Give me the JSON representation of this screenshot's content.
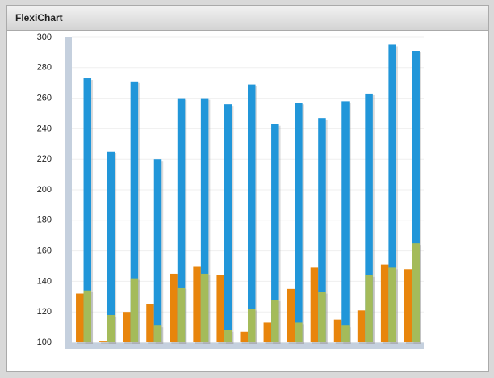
{
  "header": {
    "title": "FlexiChart"
  },
  "chart_data": {
    "type": "bar",
    "categories": [
      null,
      null,
      null,
      null,
      null,
      null,
      null,
      null,
      null,
      null,
      null,
      null,
      null,
      null,
      null
    ],
    "series": [
      {
        "color": "#e8850c",
        "offset": "left",
        "values": [
          132,
          101,
          120,
          125,
          145,
          150,
          144,
          107,
          113,
          135,
          149,
          115,
          121,
          151,
          148
        ]
      },
      {
        "color": "#2196d9",
        "offset": "right",
        "values": [
          273,
          225,
          271,
          220,
          260,
          260,
          256,
          269,
          243,
          257,
          247,
          258,
          263,
          295,
          291
        ]
      },
      {
        "color": "#a4bb5a",
        "offset": "right",
        "values": [
          134,
          118,
          142,
          111,
          136,
          145,
          108,
          122,
          128,
          113,
          133,
          111,
          144,
          149,
          165
        ]
      }
    ],
    "ylim": [
      100,
      300
    ],
    "yticks": [
      100,
      120,
      140,
      160,
      180,
      200,
      220,
      240,
      260,
      280,
      300
    ],
    "grid": true
  }
}
